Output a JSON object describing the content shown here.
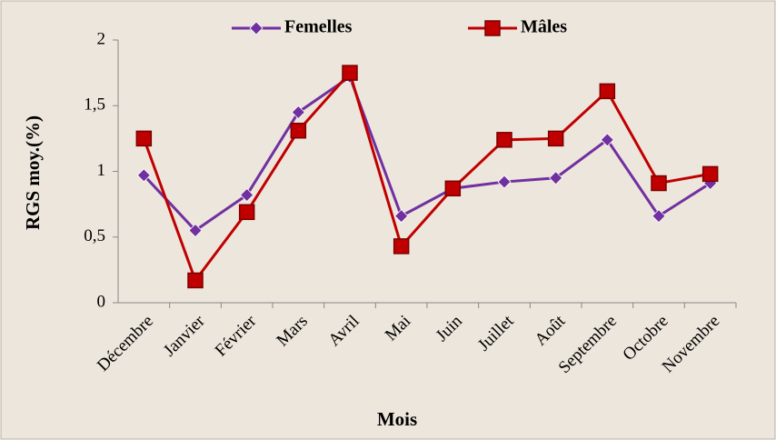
{
  "chart_data": {
    "type": "line",
    "x_label": "Mois",
    "y_label": "RGS moy.(%)",
    "categories": [
      "Décembre",
      "Janvier",
      "Février",
      "Mars",
      "Avril",
      "Mai",
      "Juin",
      "Juillet",
      "Août",
      "Septembre",
      "Octobre",
      "Novembre"
    ],
    "series": [
      {
        "name": "Femelles",
        "color": "#7030a0",
        "marker": "diamond",
        "values": [
          0.97,
          0.55,
          0.82,
          1.45,
          1.72,
          0.66,
          0.87,
          0.92,
          0.95,
          1.24,
          0.66,
          0.91
        ]
      },
      {
        "name": "Mâles",
        "color": "#c00000",
        "marker": "square",
        "values": [
          1.25,
          0.17,
          0.69,
          1.31,
          1.75,
          0.43,
          0.87,
          1.24,
          1.25,
          1.61,
          0.91,
          0.98
        ]
      }
    ],
    "ylim": [
      0,
      2
    ],
    "yticks": [
      0,
      {
        "value": 0.5,
        "label": "0,5"
      },
      1,
      {
        "value": 1.5,
        "label": "1,5"
      },
      2
    ],
    "grid": false,
    "legend": "top"
  }
}
